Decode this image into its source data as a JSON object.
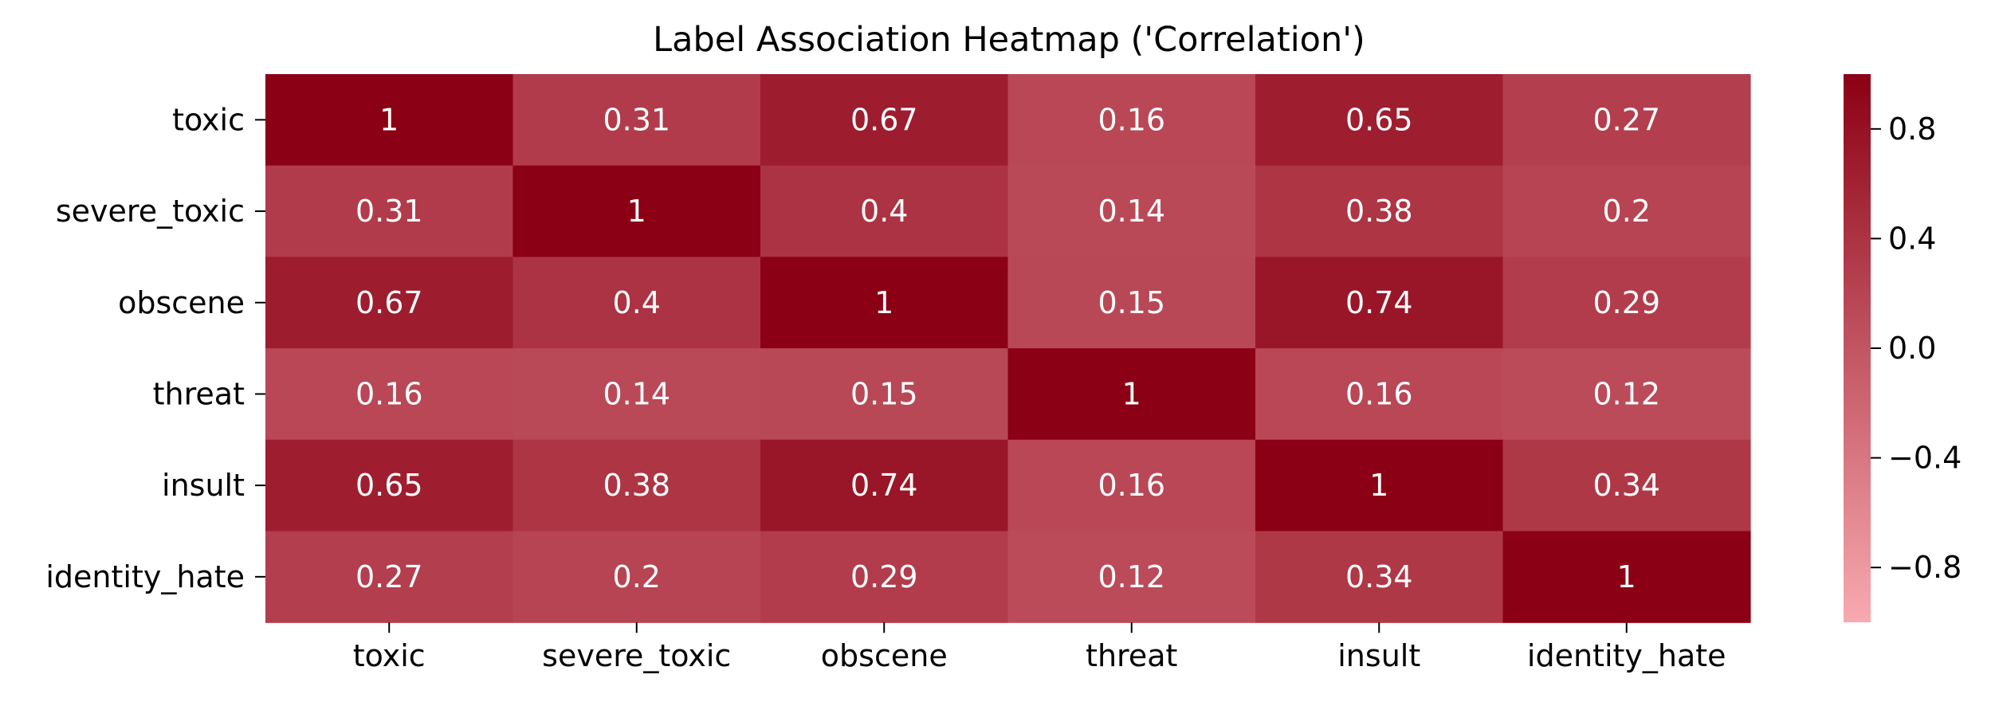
{
  "chart_data": {
    "type": "heatmap",
    "title": "Label Association Heatmap ('Correlation')",
    "xlabel": "",
    "ylabel": "",
    "x_categories": [
      "toxic",
      "severe_toxic",
      "obscene",
      "threat",
      "insult",
      "identity_hate"
    ],
    "y_categories": [
      "toxic",
      "severe_toxic",
      "obscene",
      "threat",
      "insult",
      "identity_hate"
    ],
    "values": [
      [
        1,
        0.31,
        0.67,
        0.16,
        0.65,
        0.27
      ],
      [
        0.31,
        1,
        0.4,
        0.14,
        0.38,
        0.2
      ],
      [
        0.67,
        0.4,
        1,
        0.15,
        0.74,
        0.29
      ],
      [
        0.16,
        0.14,
        0.15,
        1,
        0.16,
        0.12
      ],
      [
        0.65,
        0.38,
        0.74,
        0.16,
        1,
        0.34
      ],
      [
        0.27,
        0.2,
        0.29,
        0.12,
        0.34,
        1
      ]
    ],
    "cell_labels": [
      [
        "1",
        "0.31",
        "0.67",
        "0.16",
        "0.65",
        "0.27"
      ],
      [
        "0.31",
        "1",
        "0.4",
        "0.14",
        "0.38",
        "0.2"
      ],
      [
        "0.67",
        "0.4",
        "1",
        "0.15",
        "0.74",
        "0.29"
      ],
      [
        "0.16",
        "0.14",
        "0.15",
        "1",
        "0.16",
        "0.12"
      ],
      [
        "0.65",
        "0.38",
        "0.74",
        "0.16",
        "1",
        "0.34"
      ],
      [
        "0.27",
        "0.2",
        "0.29",
        "0.12",
        "0.34",
        "1"
      ]
    ],
    "colorbar": {
      "vmin": -1,
      "vmax": 1,
      "ticks": [
        0.8,
        0.4,
        0.0,
        -0.4,
        -0.8
      ],
      "tick_labels": [
        "0.8",
        "0.4",
        "0.0",
        "−0.4",
        "−0.8"
      ],
      "color_low": "#f8aab0",
      "color_high": "#8b0014"
    },
    "annotation_color": "#ffffff",
    "grid": false,
    "legend": "colorbar-right"
  }
}
